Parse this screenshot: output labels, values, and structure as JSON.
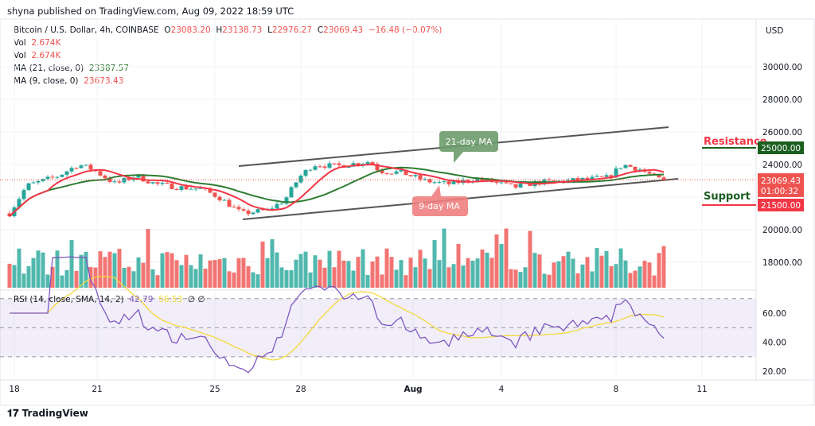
{
  "header": {
    "published": "shyna published on TradingView.com, Aug 09, 2022 18:59 UTC"
  },
  "legend": {
    "symbol": "Bitcoin / U.S. Dollar, 4h, COINBASE",
    "o_label": "O",
    "o": "23083.20",
    "h_label": "H",
    "h": "23138.73",
    "l_label": "L",
    "l": "22976.27",
    "c_label": "C",
    "c": "23069.43",
    "change": "−16.48 (−0.07%)",
    "vol1_label": "Vol",
    "vol1": "2.674K",
    "vol2_label": "Vol",
    "vol2": "2.674K",
    "ma21_label": "MA (21, close, 0)",
    "ma21": "23387.57",
    "ma9_label": "MA (9, close, 0)",
    "ma9": "23673.43",
    "rsi_label": "RSI (14, close, SMA, 14, 2)",
    "rsi": "42.79",
    "rsi_sma": "56.53",
    "rsi_extra": "∅ ∅"
  },
  "colors": {
    "up": "#26a69a",
    "down": "#ef5350",
    "ma21": "#2e7d32",
    "ma9": "#f23645",
    "rsi": "#7e57c2",
    "rsi_sma": "#f2d83b"
  },
  "chart_data": {
    "type": "candlestick",
    "currency": "USD",
    "price_ticks": [
      "30000.00",
      "28000.00",
      "26000.00",
      "24000.00",
      "20000.00",
      "18000.00"
    ],
    "rsi_ticks": [
      "60.00",
      "40.00",
      "20.00"
    ],
    "x_ticks": [
      "18",
      "21",
      "25",
      "28",
      "Aug",
      "4",
      "8",
      "11"
    ],
    "price_path_keypoints": [
      [
        0,
        21000
      ],
      [
        0.6,
        22700
      ],
      [
        1.7,
        23300
      ],
      [
        2.4,
        24000
      ],
      [
        2.9,
        23700
      ],
      [
        3.7,
        22800
      ],
      [
        4.4,
        23300
      ],
      [
        5.1,
        22800
      ],
      [
        5.9,
        22600
      ],
      [
        6.7,
        22500
      ],
      [
        7.3,
        22000
      ],
      [
        8.1,
        21000
      ],
      [
        9,
        21200
      ],
      [
        9.6,
        21800
      ],
      [
        10.1,
        23200
      ],
      [
        10.6,
        24000
      ],
      [
        11.4,
        23900
      ],
      [
        12.6,
        24200
      ],
      [
        12.9,
        23600
      ],
      [
        13.7,
        23500
      ],
      [
        14.5,
        23000
      ],
      [
        15.3,
        22800
      ],
      [
        16.2,
        23100
      ],
      [
        16.7,
        23000
      ],
      [
        17.6,
        22600
      ],
      [
        18.4,
        22900
      ],
      [
        19.5,
        23000
      ],
      [
        20.9,
        23200
      ],
      [
        21.4,
        24000
      ],
      [
        22,
        23700
      ],
      [
        22.7,
        23069
      ]
    ],
    "last_price": "23069.43",
    "countdown": "01:00:32",
    "levels": [
      {
        "name": "Resistance",
        "value": "25000.00"
      },
      {
        "name": "Support",
        "value": "21500.00"
      }
    ],
    "annotations": [
      "21-day MA",
      "9-day MA"
    ]
  },
  "footer": {
    "brand": "TradingView"
  }
}
